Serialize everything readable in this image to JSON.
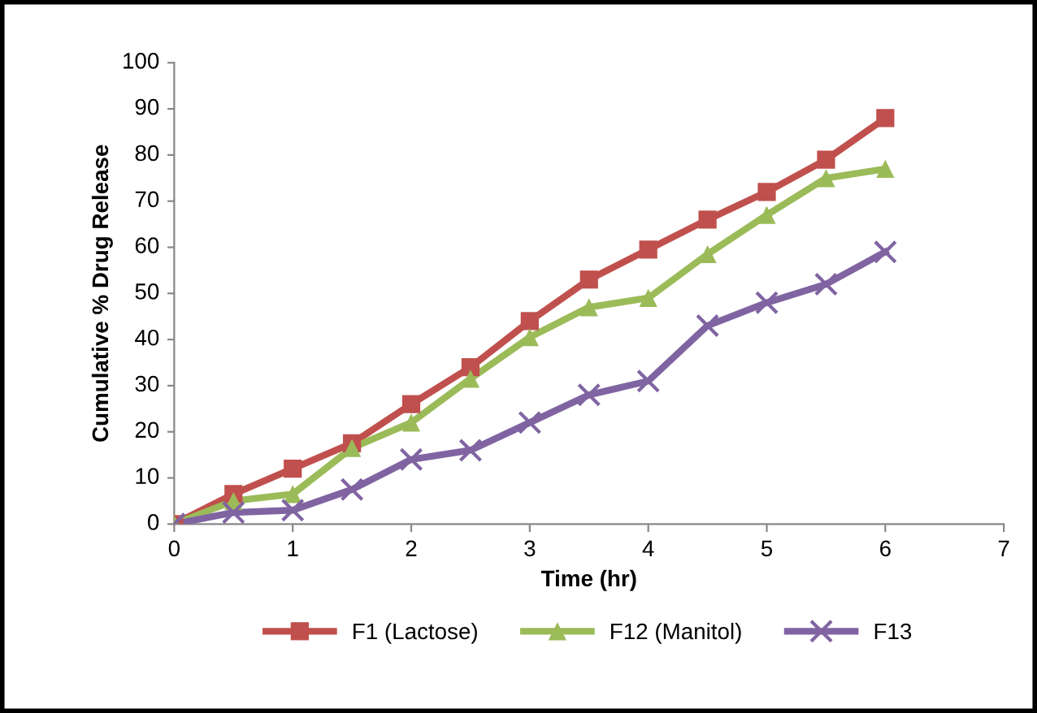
{
  "chart_data": {
    "type": "line",
    "xlabel": "Time (hr)",
    "ylabel": "Cumulative % Drug Release",
    "x": [
      0,
      0.5,
      1,
      1.5,
      2,
      2.5,
      3,
      3.5,
      4,
      4.5,
      5,
      5.5,
      6
    ],
    "series": [
      {
        "name": "F1 (Lactose)",
        "color": "#c0504d",
        "marker": "square",
        "values": [
          0,
          6.5,
          12,
          17.5,
          26,
          34,
          44,
          53,
          59.5,
          66,
          72,
          79,
          88
        ]
      },
      {
        "name": "F12 (Manitol)",
        "color": "#9bbb59",
        "marker": "triangle",
        "values": [
          0,
          5,
          6.5,
          16.5,
          22,
          31.5,
          40.5,
          47,
          49,
          58.5,
          67,
          75,
          77
        ]
      },
      {
        "name": "F13",
        "color": "#8064a2",
        "marker": "cross",
        "values": [
          0,
          2.5,
          3,
          7.5,
          14,
          16,
          22,
          28,
          31,
          43,
          48,
          52,
          59
        ]
      }
    ],
    "xlim": [
      0,
      7
    ],
    "xticks": [
      0,
      1,
      2,
      3,
      4,
      5,
      6,
      7
    ],
    "ylim": [
      0,
      100
    ],
    "yticks": [
      0,
      10,
      20,
      30,
      40,
      50,
      60,
      70,
      80,
      90,
      100
    ],
    "grid": false,
    "legend": "bottom",
    "line_style": "solid"
  }
}
